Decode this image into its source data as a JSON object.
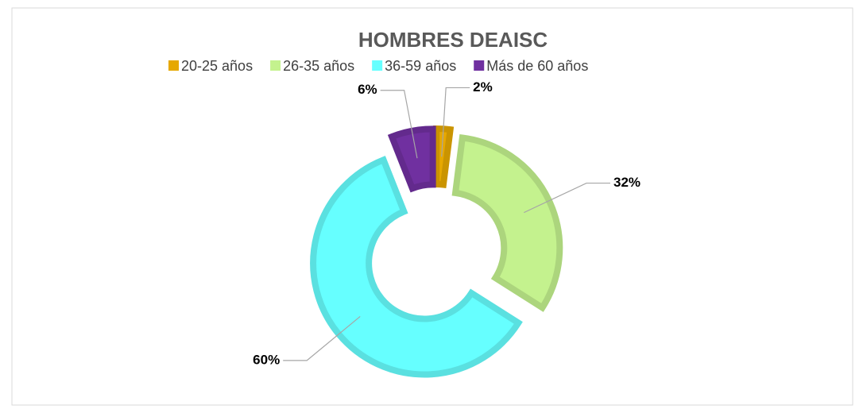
{
  "chart_data": {
    "type": "doughnut",
    "title": "HOMBRES  DEAISC",
    "categories": [
      "20-25 años",
      "26-35 años",
      "36-59 años",
      "Más de 60 años"
    ],
    "values": [
      2,
      32,
      60,
      6
    ],
    "value_labels": [
      "2%",
      "32%",
      "60%",
      "6%"
    ],
    "colors": [
      "#e6a800",
      "#c4f28e",
      "#66ffff",
      "#7030a0"
    ],
    "legend": "top"
  }
}
